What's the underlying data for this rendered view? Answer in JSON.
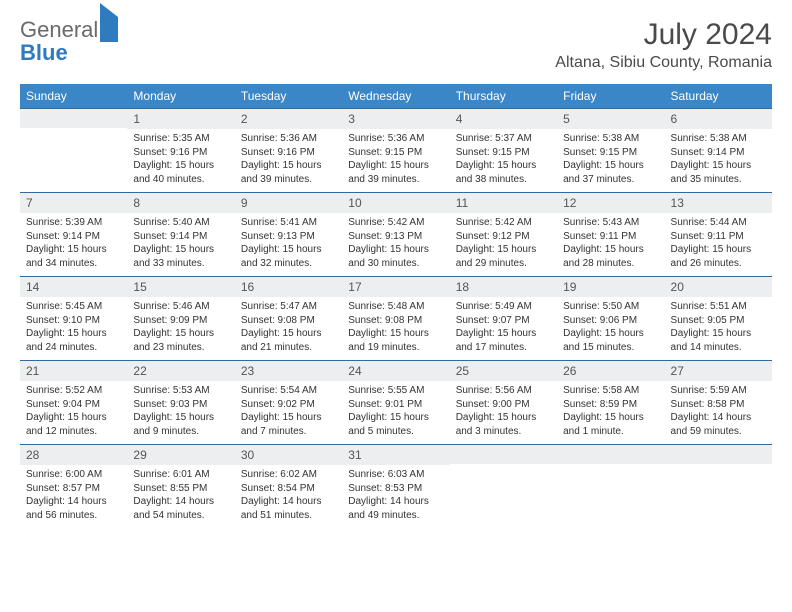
{
  "logo": {
    "word1": "General",
    "word2": "Blue"
  },
  "title": "July 2024",
  "location": "Altana, Sibiu County, Romania",
  "weekdays": [
    "Sunday",
    "Monday",
    "Tuesday",
    "Wednesday",
    "Thursday",
    "Friday",
    "Saturday"
  ],
  "colors": {
    "header_bg": "#3b86c6",
    "daynum_bg": "#eceeef",
    "row_border": "#2f6aa0",
    "logo_gray": "#6a6a6a",
    "logo_blue": "#2f7bbf"
  },
  "grid": [
    [
      {
        "empty": true
      },
      {
        "n": "1",
        "sr": "Sunrise: 5:35 AM",
        "ss": "Sunset: 9:16 PM",
        "dl": "Daylight: 15 hours and 40 minutes."
      },
      {
        "n": "2",
        "sr": "Sunrise: 5:36 AM",
        "ss": "Sunset: 9:16 PM",
        "dl": "Daylight: 15 hours and 39 minutes."
      },
      {
        "n": "3",
        "sr": "Sunrise: 5:36 AM",
        "ss": "Sunset: 9:15 PM",
        "dl": "Daylight: 15 hours and 39 minutes."
      },
      {
        "n": "4",
        "sr": "Sunrise: 5:37 AM",
        "ss": "Sunset: 9:15 PM",
        "dl": "Daylight: 15 hours and 38 minutes."
      },
      {
        "n": "5",
        "sr": "Sunrise: 5:38 AM",
        "ss": "Sunset: 9:15 PM",
        "dl": "Daylight: 15 hours and 37 minutes."
      },
      {
        "n": "6",
        "sr": "Sunrise: 5:38 AM",
        "ss": "Sunset: 9:14 PM",
        "dl": "Daylight: 15 hours and 35 minutes."
      }
    ],
    [
      {
        "n": "7",
        "sr": "Sunrise: 5:39 AM",
        "ss": "Sunset: 9:14 PM",
        "dl": "Daylight: 15 hours and 34 minutes."
      },
      {
        "n": "8",
        "sr": "Sunrise: 5:40 AM",
        "ss": "Sunset: 9:14 PM",
        "dl": "Daylight: 15 hours and 33 minutes."
      },
      {
        "n": "9",
        "sr": "Sunrise: 5:41 AM",
        "ss": "Sunset: 9:13 PM",
        "dl": "Daylight: 15 hours and 32 minutes."
      },
      {
        "n": "10",
        "sr": "Sunrise: 5:42 AM",
        "ss": "Sunset: 9:13 PM",
        "dl": "Daylight: 15 hours and 30 minutes."
      },
      {
        "n": "11",
        "sr": "Sunrise: 5:42 AM",
        "ss": "Sunset: 9:12 PM",
        "dl": "Daylight: 15 hours and 29 minutes."
      },
      {
        "n": "12",
        "sr": "Sunrise: 5:43 AM",
        "ss": "Sunset: 9:11 PM",
        "dl": "Daylight: 15 hours and 28 minutes."
      },
      {
        "n": "13",
        "sr": "Sunrise: 5:44 AM",
        "ss": "Sunset: 9:11 PM",
        "dl": "Daylight: 15 hours and 26 minutes."
      }
    ],
    [
      {
        "n": "14",
        "sr": "Sunrise: 5:45 AM",
        "ss": "Sunset: 9:10 PM",
        "dl": "Daylight: 15 hours and 24 minutes."
      },
      {
        "n": "15",
        "sr": "Sunrise: 5:46 AM",
        "ss": "Sunset: 9:09 PM",
        "dl": "Daylight: 15 hours and 23 minutes."
      },
      {
        "n": "16",
        "sr": "Sunrise: 5:47 AM",
        "ss": "Sunset: 9:08 PM",
        "dl": "Daylight: 15 hours and 21 minutes."
      },
      {
        "n": "17",
        "sr": "Sunrise: 5:48 AM",
        "ss": "Sunset: 9:08 PM",
        "dl": "Daylight: 15 hours and 19 minutes."
      },
      {
        "n": "18",
        "sr": "Sunrise: 5:49 AM",
        "ss": "Sunset: 9:07 PM",
        "dl": "Daylight: 15 hours and 17 minutes."
      },
      {
        "n": "19",
        "sr": "Sunrise: 5:50 AM",
        "ss": "Sunset: 9:06 PM",
        "dl": "Daylight: 15 hours and 15 minutes."
      },
      {
        "n": "20",
        "sr": "Sunrise: 5:51 AM",
        "ss": "Sunset: 9:05 PM",
        "dl": "Daylight: 15 hours and 14 minutes."
      }
    ],
    [
      {
        "n": "21",
        "sr": "Sunrise: 5:52 AM",
        "ss": "Sunset: 9:04 PM",
        "dl": "Daylight: 15 hours and 12 minutes."
      },
      {
        "n": "22",
        "sr": "Sunrise: 5:53 AM",
        "ss": "Sunset: 9:03 PM",
        "dl": "Daylight: 15 hours and 9 minutes."
      },
      {
        "n": "23",
        "sr": "Sunrise: 5:54 AM",
        "ss": "Sunset: 9:02 PM",
        "dl": "Daylight: 15 hours and 7 minutes."
      },
      {
        "n": "24",
        "sr": "Sunrise: 5:55 AM",
        "ss": "Sunset: 9:01 PM",
        "dl": "Daylight: 15 hours and 5 minutes."
      },
      {
        "n": "25",
        "sr": "Sunrise: 5:56 AM",
        "ss": "Sunset: 9:00 PM",
        "dl": "Daylight: 15 hours and 3 minutes."
      },
      {
        "n": "26",
        "sr": "Sunrise: 5:58 AM",
        "ss": "Sunset: 8:59 PM",
        "dl": "Daylight: 15 hours and 1 minute."
      },
      {
        "n": "27",
        "sr": "Sunrise: 5:59 AM",
        "ss": "Sunset: 8:58 PM",
        "dl": "Daylight: 14 hours and 59 minutes."
      }
    ],
    [
      {
        "n": "28",
        "sr": "Sunrise: 6:00 AM",
        "ss": "Sunset: 8:57 PM",
        "dl": "Daylight: 14 hours and 56 minutes."
      },
      {
        "n": "29",
        "sr": "Sunrise: 6:01 AM",
        "ss": "Sunset: 8:55 PM",
        "dl": "Daylight: 14 hours and 54 minutes."
      },
      {
        "n": "30",
        "sr": "Sunrise: 6:02 AM",
        "ss": "Sunset: 8:54 PM",
        "dl": "Daylight: 14 hours and 51 minutes."
      },
      {
        "n": "31",
        "sr": "Sunrise: 6:03 AM",
        "ss": "Sunset: 8:53 PM",
        "dl": "Daylight: 14 hours and 49 minutes."
      },
      {
        "empty": true
      },
      {
        "empty": true
      },
      {
        "empty": true
      }
    ]
  ]
}
